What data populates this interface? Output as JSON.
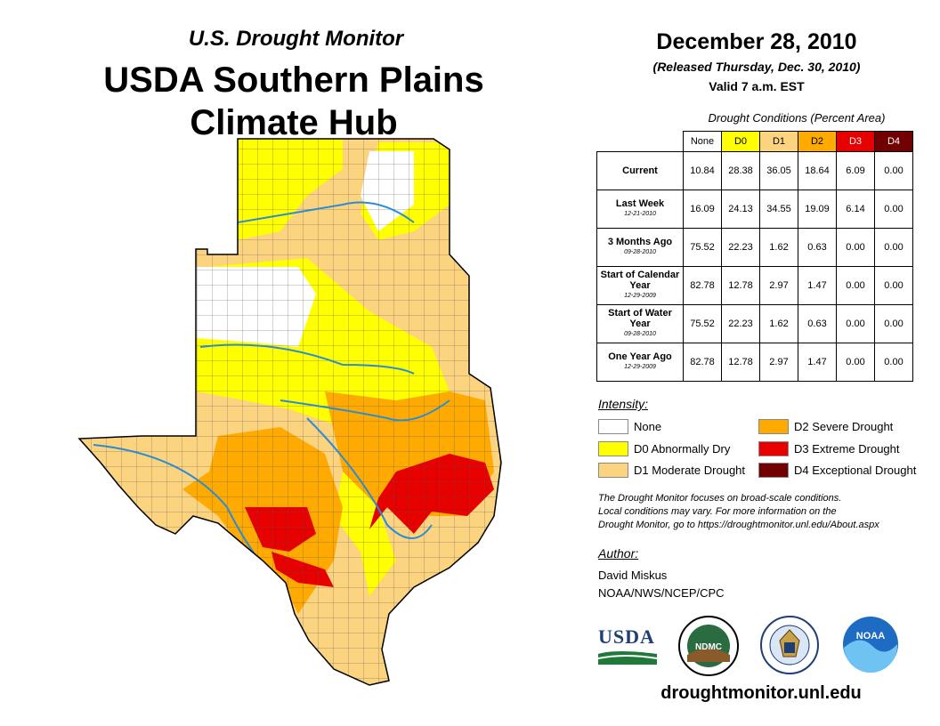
{
  "header": {
    "subtitle": "U.S. Drought Monitor",
    "title_line1": "USDA Southern Plains",
    "title_line2": "Climate Hub"
  },
  "date": {
    "main": "December 28, 2010",
    "released": "(Released Thursday, Dec. 30, 2010)",
    "valid": "Valid 7 a.m. EST"
  },
  "table": {
    "caption": "Drought Conditions (Percent Area)",
    "columns": [
      "None",
      "D0",
      "D1",
      "D2",
      "D3",
      "D4"
    ],
    "rows": [
      {
        "label": "Current",
        "sub": "",
        "values": [
          "10.84",
          "28.38",
          "36.05",
          "18.64",
          "6.09",
          "0.00"
        ]
      },
      {
        "label": "Last Week",
        "sub": "12-21-2010",
        "values": [
          "16.09",
          "24.13",
          "34.55",
          "19.09",
          "6.14",
          "0.00"
        ]
      },
      {
        "label": "3 Months Ago",
        "sub": "09-28-2010",
        "values": [
          "75.52",
          "22.23",
          "1.62",
          "0.63",
          "0.00",
          "0.00"
        ]
      },
      {
        "label": "Start of Calendar Year",
        "sub": "12-29-2009",
        "values": [
          "82.78",
          "12.78",
          "2.97",
          "1.47",
          "0.00",
          "0.00"
        ]
      },
      {
        "label": "Start of Water Year",
        "sub": "09-28-2010",
        "values": [
          "75.52",
          "22.23",
          "1.62",
          "0.63",
          "0.00",
          "0.00"
        ]
      },
      {
        "label": "One Year Ago",
        "sub": "12-29-2009",
        "values": [
          "82.78",
          "12.78",
          "2.97",
          "1.47",
          "0.00",
          "0.00"
        ]
      }
    ]
  },
  "legend": {
    "title": "Intensity:",
    "items": [
      {
        "label": "None",
        "color": "#ffffff"
      },
      {
        "label": "D0 Abnormally Dry",
        "color": "#ffff00"
      },
      {
        "label": "D1 Moderate Drought",
        "color": "#fcd37f"
      },
      {
        "label": "D2 Severe Drought",
        "color": "#ffaa00"
      },
      {
        "label": "D3 Extreme Drought",
        "color": "#e60000"
      },
      {
        "label": "D4 Exceptional Drought",
        "color": "#730000"
      }
    ]
  },
  "note": {
    "line1": "The Drought Monitor focuses on broad-scale conditions.",
    "line2": "Local conditions may vary. For more information on the",
    "line3": "Drought Monitor, go to https://droughtmonitor.unl.edu/About.aspx"
  },
  "author": {
    "heading": "Author:",
    "name": "David Miskus",
    "org": "NOAA/NWS/NCEP/CPC"
  },
  "logos": {
    "usda": "USDA",
    "ndmc": "NDMC",
    "noaa": "NOAA"
  },
  "footer": {
    "url": "droughtmonitor.unl.edu"
  }
}
